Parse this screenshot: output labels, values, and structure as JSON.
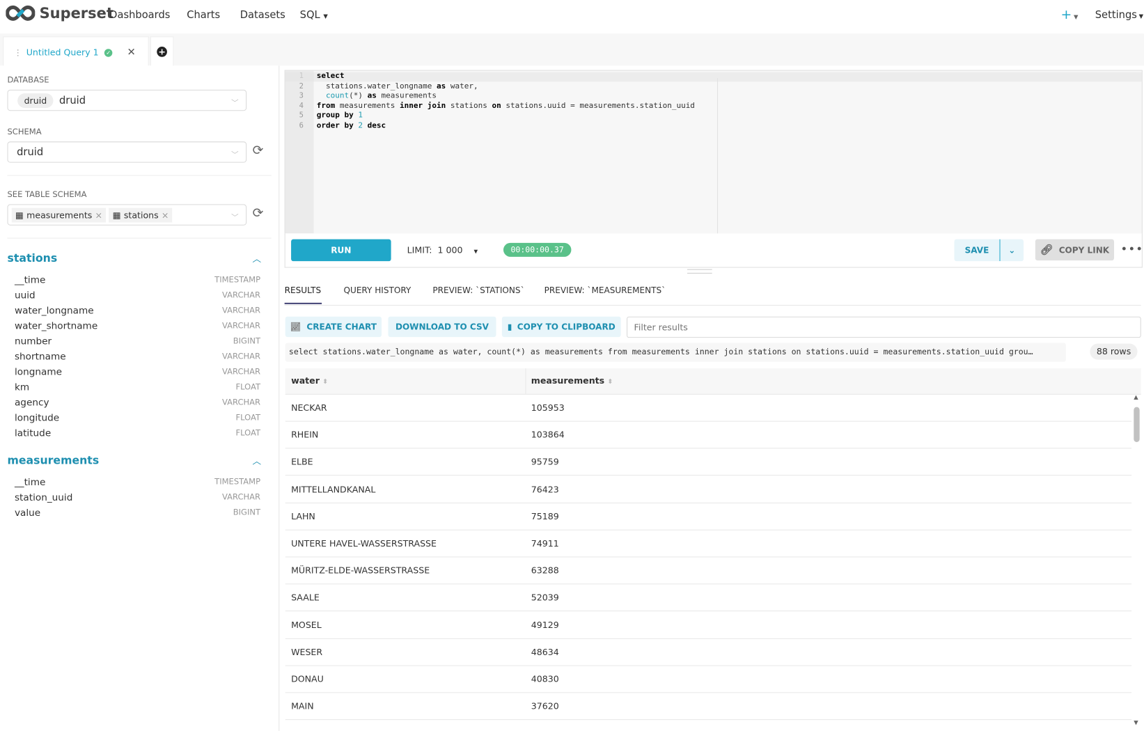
{
  "navbar": {
    "brand": "Superset",
    "items": [
      "Dashboards",
      "Charts",
      "Datasets",
      "SQL"
    ],
    "plus": "+",
    "settings": "Settings"
  },
  "query_tab": {
    "title": "Untitled Query 1",
    "status": "success"
  },
  "left": {
    "database_label": "DATABASE",
    "database_tag": "druid",
    "database_value": "druid",
    "schema_label": "SCHEMA",
    "schema_value": "druid",
    "table_schema_label": "SEE TABLE SCHEMA",
    "selected_tables": [
      "measurements",
      "stations"
    ],
    "tables": [
      {
        "name": "stations",
        "columns": [
          [
            "__time",
            "TIMESTAMP"
          ],
          [
            "uuid",
            "VARCHAR"
          ],
          [
            "water_longname",
            "VARCHAR"
          ],
          [
            "water_shortname",
            "VARCHAR"
          ],
          [
            "number",
            "BIGINT"
          ],
          [
            "shortname",
            "VARCHAR"
          ],
          [
            "longname",
            "VARCHAR"
          ],
          [
            "km",
            "FLOAT"
          ],
          [
            "agency",
            "VARCHAR"
          ],
          [
            "longitude",
            "FLOAT"
          ],
          [
            "latitude",
            "FLOAT"
          ]
        ]
      },
      {
        "name": "measurements",
        "columns": [
          [
            "__time",
            "TIMESTAMP"
          ],
          [
            "station_uuid",
            "VARCHAR"
          ],
          [
            "value",
            "BIGINT"
          ]
        ]
      }
    ]
  },
  "editor": {
    "line_numbers": [
      "1",
      "2",
      "3",
      "4",
      "5",
      "6"
    ]
  },
  "toolbar": {
    "run": "RUN",
    "limit_label": "LIMIT:",
    "limit_value": "1 000",
    "timer": "00:00:00.37",
    "save": "SAVE",
    "copy_link": "COPY LINK"
  },
  "results": {
    "tabs": [
      "RESULTS",
      "QUERY HISTORY",
      "PREVIEW: `STATIONS`",
      "PREVIEW: `MEASUREMENTS`"
    ],
    "create_chart": "CREATE CHART",
    "download_csv": "DOWNLOAD TO CSV",
    "copy_clipboard": "COPY TO CLIPBOARD",
    "filter_placeholder": "Filter results",
    "sql_preview": "select stations.water_longname as water, count(*) as measurements from measurements inner join stations on stations.uuid = measurements.station_uuid grou…",
    "row_count": "88 rows",
    "columns": [
      "water",
      "measurements"
    ],
    "rows": [
      [
        "NECKAR",
        "105953"
      ],
      [
        "RHEIN",
        "103864"
      ],
      [
        "ELBE",
        "95759"
      ],
      [
        "MITTELLANDKANAL",
        "76423"
      ],
      [
        "LAHN",
        "75189"
      ],
      [
        "UNTERE HAVEL-WASSERSTRASSE",
        "74911"
      ],
      [
        "MÜRITZ-ELDE-WASSERSTRASSE",
        "63288"
      ],
      [
        "SAALE",
        "52039"
      ],
      [
        "MOSEL",
        "49129"
      ],
      [
        "WESER",
        "48634"
      ],
      [
        "DONAU",
        "40830"
      ],
      [
        "MAIN",
        "37620"
      ]
    ]
  },
  "colors": {
    "accent": "#20a7c9",
    "success": "#5ac189",
    "run": "#20a7c9"
  }
}
